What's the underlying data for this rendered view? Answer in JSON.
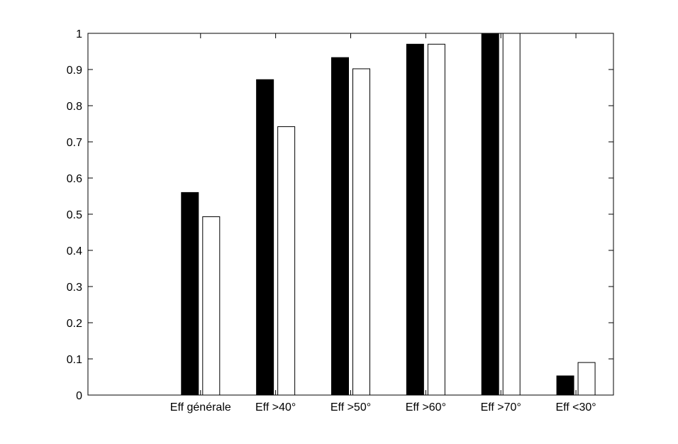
{
  "chart_data": {
    "type": "bar",
    "title": "",
    "xlabel": "",
    "ylabel": "",
    "categories": [
      "Eff générale",
      "Eff >40°",
      "Eff >50°",
      "Eff >60°",
      "Eff >70°",
      "Eff <30°"
    ],
    "series": [
      {
        "color": "#000000",
        "values": [
          0.56,
          0.872,
          0.933,
          0.97,
          1.0,
          0.053
        ]
      },
      {
        "color": "#ffffff",
        "values": [
          0.493,
          0.742,
          0.902,
          0.97,
          1.0,
          0.09
        ]
      }
    ],
    "ylim": [
      0,
      1
    ],
    "yticks": [
      0,
      0.1,
      0.2,
      0.3,
      0.4,
      0.5,
      0.6,
      0.7,
      0.8,
      0.9,
      1
    ],
    "ytick_labels": [
      "0",
      "0.1",
      "0.2",
      "0.3",
      "0.4",
      "0.5",
      "0.6",
      "0.7",
      "0.8",
      "0.9",
      "1"
    ],
    "xlim": [
      -0.5,
      6.5
    ],
    "grid": false,
    "legend": false
  }
}
